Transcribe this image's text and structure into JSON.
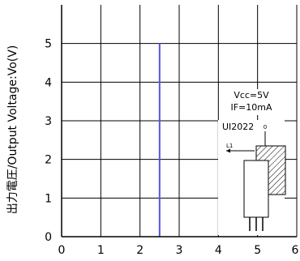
{
  "chart_data": {
    "type": "line",
    "xlabel": "",
    "ylabel": "出力電圧/Output Voltage:Vo(V)",
    "xlim": [
      0,
      6
    ],
    "ylim": [
      0,
      6
    ],
    "x_ticks": [
      "0",
      "1",
      "2",
      "3",
      "4",
      "5",
      "6"
    ],
    "y_ticks": [
      "0",
      "1",
      "2",
      "3",
      "4",
      "5"
    ],
    "grid": true,
    "series": [
      {
        "x": [
          2.5,
          2.5
        ],
        "y": [
          0,
          5
        ],
        "color": "#5555dd"
      }
    ],
    "conditions": [
      "Vcc=5V",
      "IF=10mA"
    ],
    "device_label": "UI2022",
    "inset_labels": {
      "distance": "L1",
      "origin": "0"
    }
  }
}
